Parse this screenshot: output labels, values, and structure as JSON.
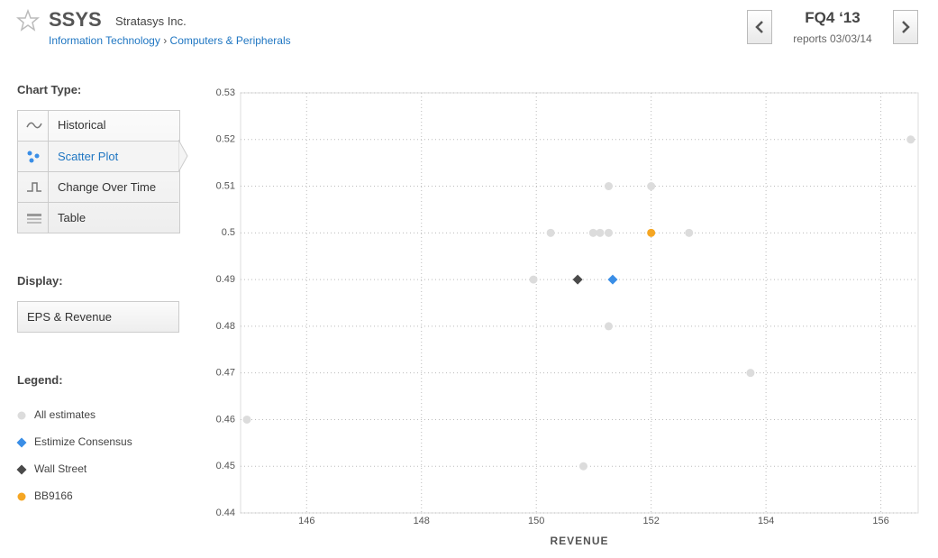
{
  "header": {
    "ticker": "SSYS",
    "company": "Stratasys Inc.",
    "sector": "Information Technology",
    "separator": "›",
    "industry": "Computers & Peripherals",
    "quarter": "FQ4 ‘13",
    "report_date": "reports 03/03/14"
  },
  "sidebar": {
    "chart_type_label": "Chart Type:",
    "chart_types": [
      "Historical",
      "Scatter Plot",
      "Change Over Time",
      "Table"
    ],
    "display_label": "Display:",
    "display_value": "EPS & Revenue",
    "legend_label": "Legend:"
  },
  "chart_data": {
    "type": "scatter",
    "x_label": "REVENUE",
    "xlim": [
      144.85,
      156.65
    ],
    "xticks": [
      146,
      148,
      150,
      152,
      154,
      156
    ],
    "ylim": [
      0.44,
      0.53
    ],
    "yticks": [
      0.44,
      0.45,
      0.46,
      0.47,
      0.48,
      0.49,
      0.5,
      0.51,
      0.52,
      0.53
    ],
    "grid": true,
    "series": [
      {
        "name": "All estimates",
        "color": "#dcdcdc",
        "marker": "circle",
        "x": [
          156.52,
          151.26,
          152.0,
          150.25,
          150.99,
          151.11,
          151.26,
          152.66,
          149.95,
          151.26,
          153.73,
          144.96,
          150.82
        ],
        "values": [
          0.52,
          0.51,
          0.51,
          0.5,
          0.5,
          0.5,
          0.5,
          0.5,
          0.49,
          0.48,
          0.47,
          0.46,
          0.45
        ]
      },
      {
        "name": "Estimize Consensus",
        "color": "#3a8ee6",
        "marker": "diamond",
        "x": [
          151.33
        ],
        "values": [
          0.49
        ]
      },
      {
        "name": "Wall Street",
        "color": "#4a4a4a",
        "marker": "diamond",
        "x": [
          150.72
        ],
        "values": [
          0.49
        ]
      },
      {
        "name": "BB9166",
        "color": "#f5a623",
        "marker": "circle",
        "x": [
          152.0
        ],
        "values": [
          0.5
        ]
      }
    ]
  }
}
